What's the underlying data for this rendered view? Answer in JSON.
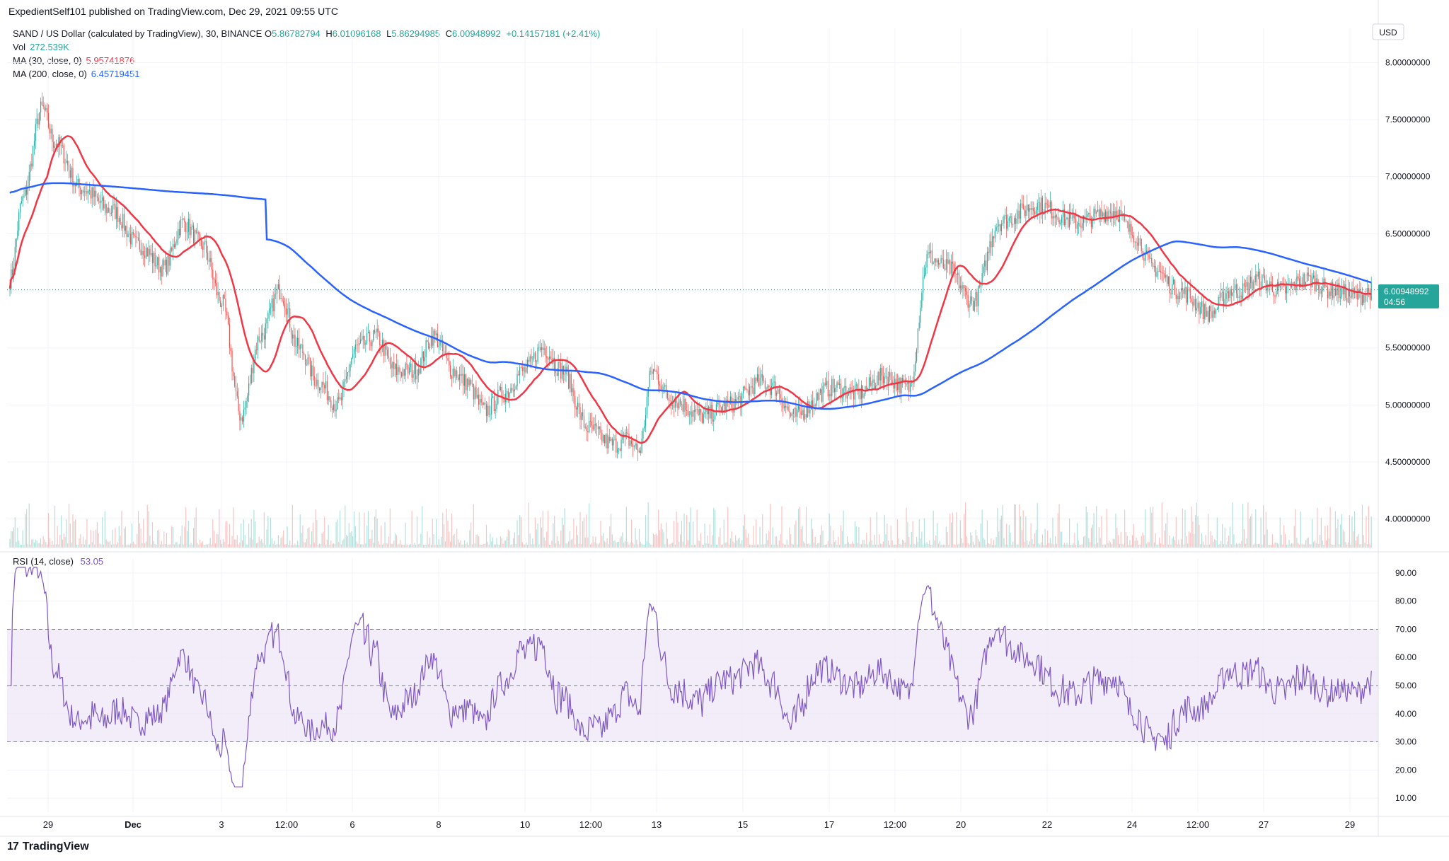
{
  "header": {
    "publisher": "ExpedientSelf101 published on TradingView.com, Dec 29, 2021 09:55 UTC"
  },
  "legend": {
    "symbol": "SAND / US Dollar (calculated by TradingView), 30, BINANCE",
    "o_label": "O",
    "o_value": "5.86782794",
    "h_label": "H",
    "h_value": "6.01096168",
    "l_label": "L",
    "l_value": "5.86294985",
    "c_label": "C",
    "c_value": "6.00948992",
    "change": "+0.14157181 (+2.41%)",
    "vol_label": "Vol",
    "vol_value": "272.539K",
    "ma30_label": "MA (30, close, 0)",
    "ma30_value": "5.95741876",
    "ma200_label": "MA (200, close, 0)",
    "ma200_value": "6.45719451"
  },
  "rsi_legend": {
    "label": "RSI (14, close)",
    "value": "53.05"
  },
  "currency": "USD",
  "price_badge": {
    "price": "6.00948992",
    "countdown": "04:56"
  },
  "brand": {
    "logo": "17",
    "name": "TradingView"
  },
  "colors": {
    "up": "#26a69a",
    "down": "#ef5350",
    "ma30": "#f23645",
    "ma200": "#2962ff",
    "rsi": "#7e57c2",
    "rsi_band": "#ede7f6"
  },
  "chart_data": [
    {
      "type": "candlestick",
      "title": "SAND / US Dollar (calculated by TradingView), 30, BINANCE",
      "ylim": [
        3.75,
        8.3
      ],
      "y_ticks": [
        "8.00000000",
        "7.50000000",
        "7.00000000",
        "6.50000000",
        "6.00000000",
        "5.50000000",
        "5.00000000",
        "4.50000000",
        "4.00000000"
      ],
      "x_ticks": [
        "29",
        "Dec",
        "3",
        "12:00",
        "6",
        "8",
        "10",
        "12:00",
        "13",
        "15",
        "17",
        "12:00",
        "20",
        "22",
        "24",
        "12:00",
        "27",
        "29"
      ],
      "last_price": 6.00948992,
      "close_keypoints": {
        "x": [
          0,
          10,
          25,
          35,
          55,
          80,
          100,
          120,
          135,
          150,
          165,
          180,
          195,
          210,
          225,
          240,
          255,
          270,
          285,
          300,
          315,
          330,
          345,
          355,
          370,
          385,
          400,
          415,
          430,
          450,
          470,
          480,
          490,
          500,
          515,
          540,
          560,
          585,
          595,
          610,
          640,
          660,
          680,
          700,
          715,
          730,
          750,
          770,
          800,
          830,
          860,
          875,
          890,
          910,
          935,
          950,
          960,
          970,
          990,
          1010,
          1030,
          1050,
          1060
        ],
        "y": [
          6.1,
          6.8,
          7.6,
          7.3,
          6.9,
          6.7,
          6.4,
          6.2,
          6.6,
          6.4,
          5.9,
          4.9,
          5.6,
          6.0,
          5.5,
          5.2,
          5.0,
          5.5,
          5.6,
          5.3,
          5.3,
          5.6,
          5.3,
          5.2,
          4.95,
          5.1,
          5.3,
          5.5,
          5.3,
          4.8,
          4.65,
          4.7,
          4.6,
          5.3,
          5.05,
          4.9,
          5.0,
          5.2,
          5.15,
          4.9,
          5.15,
          5.1,
          5.25,
          5.15,
          6.3,
          6.2,
          5.9,
          6.6,
          6.75,
          6.6,
          6.7,
          6.5,
          6.2,
          6.0,
          5.8,
          6.0,
          6.0,
          6.1,
          6.0,
          6.1,
          6.0,
          5.95,
          6.0
        ]
      },
      "series": [
        {
          "name": "MA (30, close, 0)",
          "last": 5.95741876
        },
        {
          "name": "MA (200, close, 0)",
          "last": 6.45719451
        }
      ]
    },
    {
      "type": "line",
      "title": "RSI (14, close)",
      "ylim": [
        5,
        95
      ],
      "y_ticks": [
        "90.00",
        "80.00",
        "70.00",
        "60.00",
        "50.00",
        "40.00",
        "30.00",
        "20.00",
        "10.00"
      ],
      "band": [
        30,
        70
      ],
      "last_value": 53.05
    }
  ]
}
